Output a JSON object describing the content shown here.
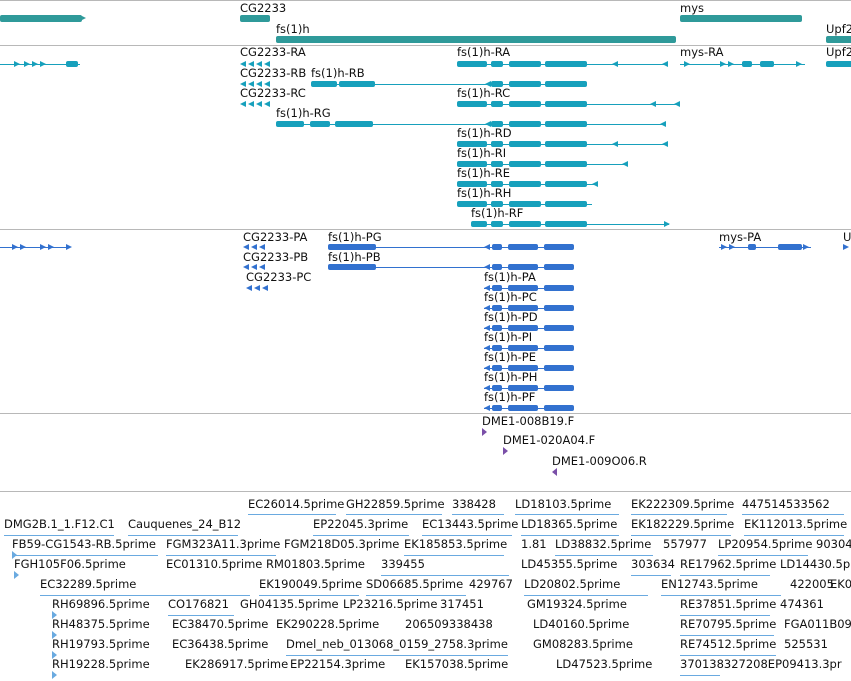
{
  "colors": {
    "gene": "#2f9a9a",
    "transcript": "#17a0bc",
    "cds": "#3271cf",
    "clone": "#7a4fa8",
    "est": "#6aaae0",
    "separator": "#b8b8b8"
  },
  "genes_track": {
    "labels": [
      {
        "id": "g1",
        "text": "CG2233"
      },
      {
        "id": "g2",
        "text": "fs(1)h"
      },
      {
        "id": "g3",
        "text": "mys"
      },
      {
        "id": "g4",
        "text": "Upf2"
      }
    ]
  },
  "transcripts_track": {
    "labels": [
      {
        "id": "t1",
        "text": "CG2233-RA"
      },
      {
        "id": "t2",
        "text": "fs(1)h-RA"
      },
      {
        "id": "t3",
        "text": "mys-RA"
      },
      {
        "id": "t4",
        "text": "Upf2"
      },
      {
        "id": "t5",
        "text": "CG2233-RB"
      },
      {
        "id": "t6",
        "text": "fs(1)h-RB"
      },
      {
        "id": "t7",
        "text": "CG2233-RC"
      },
      {
        "id": "t8",
        "text": "fs(1)h-RC"
      },
      {
        "id": "t9",
        "text": "fs(1)h-RG"
      },
      {
        "id": "t10",
        "text": "fs(1)h-RD"
      },
      {
        "id": "t11",
        "text": "fs(1)h-RI"
      },
      {
        "id": "t12",
        "text": "fs(1)h-RE"
      },
      {
        "id": "t13",
        "text": "fs(1)h-RH"
      },
      {
        "id": "t14",
        "text": "fs(1)h-RF"
      }
    ]
  },
  "cds_track": {
    "labels": [
      {
        "id": "c1",
        "text": "CG2233-PA"
      },
      {
        "id": "c2",
        "text": "fs(1)h-PG"
      },
      {
        "id": "c3",
        "text": "mys-PA"
      },
      {
        "id": "c4",
        "text": "U"
      },
      {
        "id": "c5",
        "text": "CG2233-PB"
      },
      {
        "id": "c6",
        "text": "fs(1)h-PB"
      },
      {
        "id": "c7",
        "text": "CG2233-PC"
      },
      {
        "id": "c8",
        "text": "fs(1)h-PA"
      },
      {
        "id": "c9",
        "text": "fs(1)h-PC"
      },
      {
        "id": "c10",
        "text": "fs(1)h-PD"
      },
      {
        "id": "c11",
        "text": "fs(1)h-PI"
      },
      {
        "id": "c12",
        "text": "fs(1)h-PE"
      },
      {
        "id": "c13",
        "text": "fs(1)h-PH"
      },
      {
        "id": "c14",
        "text": "fs(1)h-PF"
      }
    ]
  },
  "clones_track": {
    "labels": [
      {
        "id": "k1",
        "text": "DME1-008B19.F"
      },
      {
        "id": "k2",
        "text": "DME1-020A04.F"
      },
      {
        "id": "k3",
        "text": "DME1-009O06.R"
      }
    ]
  },
  "est_track": {
    "labels": [
      {
        "id": "e1",
        "text": "EC26014.5prime"
      },
      {
        "id": "e2",
        "text": "GH22859.5prime"
      },
      {
        "id": "e3",
        "text": "338428"
      },
      {
        "id": "e4",
        "text": "LD18103.5prime"
      },
      {
        "id": "e5",
        "text": "EK222309.5prime"
      },
      {
        "id": "e6",
        "text": "447514533562"
      },
      {
        "id": "e7",
        "text": "DMG2B.1_1.F12.C1"
      },
      {
        "id": "e8",
        "text": "Cauquenes_24_B12"
      },
      {
        "id": "e9",
        "text": "EP22045.3prime"
      },
      {
        "id": "e10",
        "text": "EC13443.5prime"
      },
      {
        "id": "e11",
        "text": "LD18365.5prime"
      },
      {
        "id": "e12",
        "text": "EK182229.5prime"
      },
      {
        "id": "e13",
        "text": "EK112013.5prime"
      },
      {
        "id": "e14",
        "text": "FB59-CG1543-RB.5prime"
      },
      {
        "id": "e15",
        "text": "FGM323A11.3prime"
      },
      {
        "id": "e16",
        "text": "FGM218D05.3prime"
      },
      {
        "id": "e17",
        "text": "EK185853.5prime"
      },
      {
        "id": "e18",
        "text": "1.81"
      },
      {
        "id": "e19",
        "text": "LD38832.5prime"
      },
      {
        "id": "e20",
        "text": "557977"
      },
      {
        "id": "e21",
        "text": "LP20954.5prime"
      },
      {
        "id": "e22",
        "text": "90304"
      },
      {
        "id": "e23",
        "text": "FGH105F06.5prime"
      },
      {
        "id": "e24",
        "text": "EC01310.5prime"
      },
      {
        "id": "e25",
        "text": "RM01803.5prime"
      },
      {
        "id": "e26",
        "text": "339455"
      },
      {
        "id": "e27",
        "text": "LD45355.5prime"
      },
      {
        "id": "e28",
        "text": "303634"
      },
      {
        "id": "e29",
        "text": "RE17962.5prime"
      },
      {
        "id": "e30",
        "text": "LD14430.5p"
      },
      {
        "id": "e31",
        "text": "EC32289.5prime"
      },
      {
        "id": "e32",
        "text": "EK190049.5prime"
      },
      {
        "id": "e33",
        "text": "SD06685.5prime"
      },
      {
        "id": "e34",
        "text": "429767"
      },
      {
        "id": "e35",
        "text": "LD20802.5prime"
      },
      {
        "id": "e36",
        "text": "EN12743.5prime"
      },
      {
        "id": "e37",
        "text": "422005"
      },
      {
        "id": "e38",
        "text": "EK0"
      },
      {
        "id": "e39",
        "text": "RH69896.5prime"
      },
      {
        "id": "e40",
        "text": "CO176821"
      },
      {
        "id": "e41",
        "text": "GH04135.5prime"
      },
      {
        "id": "e42",
        "text": "LP23216.5prime"
      },
      {
        "id": "e43",
        "text": "317451"
      },
      {
        "id": "e44",
        "text": "GM19324.5prime"
      },
      {
        "id": "e45",
        "text": "RE37851.5prime"
      },
      {
        "id": "e46",
        "text": "474361"
      },
      {
        "id": "e47",
        "text": "RH48375.5prime"
      },
      {
        "id": "e48",
        "text": "EC38470.5prime"
      },
      {
        "id": "e49",
        "text": "EK290228.5prime"
      },
      {
        "id": "e50",
        "text": "206509338438"
      },
      {
        "id": "e51",
        "text": "LD40160.5prime"
      },
      {
        "id": "e52",
        "text": "RE70795.5prime"
      },
      {
        "id": "e53",
        "text": "FGA011B09"
      },
      {
        "id": "e54",
        "text": "RH19793.5prime"
      },
      {
        "id": "e55",
        "text": "EC36438.5prime"
      },
      {
        "id": "e56",
        "text": "Dmel_neb_013068_0159_2758.3prime"
      },
      {
        "id": "e57",
        "text": "GM08283.5prime"
      },
      {
        "id": "e58",
        "text": "RE74512.5prime"
      },
      {
        "id": "e59",
        "text": "525531"
      },
      {
        "id": "e60",
        "text": "RH19228.5prime"
      },
      {
        "id": "e61",
        "text": "EK286917.5prime"
      },
      {
        "id": "e62",
        "text": "EP22154.3prime"
      },
      {
        "id": "e63",
        "text": "EK157038.5prime"
      },
      {
        "id": "e64",
        "text": "LD47523.5prime"
      },
      {
        "id": "e65",
        "text": "370138327208EP09413.3pr"
      }
    ]
  }
}
